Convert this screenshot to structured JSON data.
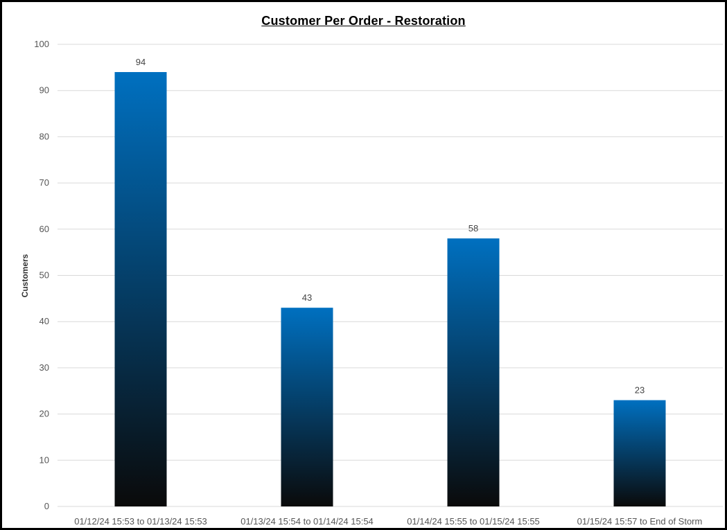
{
  "chart_data": {
    "type": "bar",
    "title": "Customer Per Order - Restoration",
    "xlabel": "",
    "ylabel": "Customers",
    "categories": [
      "01/12/24 15:53 to 01/13/24 15:53",
      "01/13/24 15:54 to 01/14/24 15:54",
      "01/14/24 15:55 to 01/15/24 15:55",
      "01/15/24 15:57 to End of Storm"
    ],
    "values": [
      94,
      43,
      58,
      23
    ],
    "data_labels": [
      "94",
      "43",
      "58",
      "23"
    ],
    "ylim": [
      0,
      100
    ],
    "yticks": [
      0,
      10,
      20,
      30,
      40,
      50,
      60,
      70,
      80,
      90,
      100
    ],
    "grid": true,
    "legend": "none",
    "colors": {
      "bar_top": "#0070C0",
      "bar_bottom": "#0A0A0A",
      "gridline": "#D9D9D9",
      "frame": "#000000"
    }
  }
}
